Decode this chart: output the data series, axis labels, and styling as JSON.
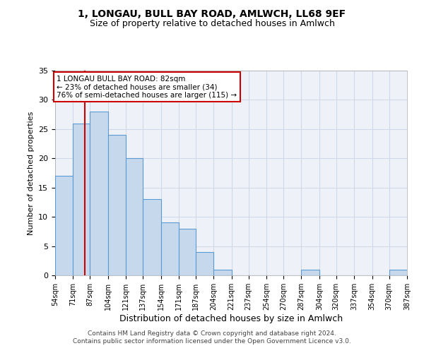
{
  "title": "1, LONGAU, BULL BAY ROAD, AMLWCH, LL68 9EF",
  "subtitle": "Size of property relative to detached houses in Amlwch",
  "xlabel": "Distribution of detached houses by size in Amlwch",
  "ylabel": "Number of detached properties",
  "bar_edges": [
    54,
    71,
    87,
    104,
    121,
    137,
    154,
    171,
    187,
    204,
    221,
    237,
    254,
    270,
    287,
    304,
    320,
    337,
    354,
    370,
    387
  ],
  "bar_heights": [
    17,
    26,
    28,
    24,
    20,
    13,
    9,
    8,
    4,
    1,
    0,
    0,
    0,
    0,
    1,
    0,
    0,
    0,
    0,
    1
  ],
  "bar_color": "#c6d9ec",
  "bar_edge_color": "#5b9bd5",
  "ylim": [
    0,
    35
  ],
  "yticks": [
    0,
    5,
    10,
    15,
    20,
    25,
    30,
    35
  ],
  "tick_labels": [
    "54sqm",
    "71sqm",
    "87sqm",
    "104sqm",
    "121sqm",
    "137sqm",
    "154sqm",
    "171sqm",
    "187sqm",
    "204sqm",
    "221sqm",
    "237sqm",
    "254sqm",
    "270sqm",
    "287sqm",
    "304sqm",
    "320sqm",
    "337sqm",
    "354sqm",
    "370sqm",
    "387sqm"
  ],
  "property_line_x": 82,
  "annotation_text": "1 LONGAU BULL BAY ROAD: 82sqm\n← 23% of detached houses are smaller (34)\n76% of semi-detached houses are larger (115) →",
  "annotation_box_color": "#ffffff",
  "annotation_box_edge_color": "#cc0000",
  "footer_line1": "Contains HM Land Registry data © Crown copyright and database right 2024.",
  "footer_line2": "Contains public sector information licensed under the Open Government Licence v3.0.",
  "grid_color": "#d0d8e8",
  "background_color": "#eef2f8"
}
